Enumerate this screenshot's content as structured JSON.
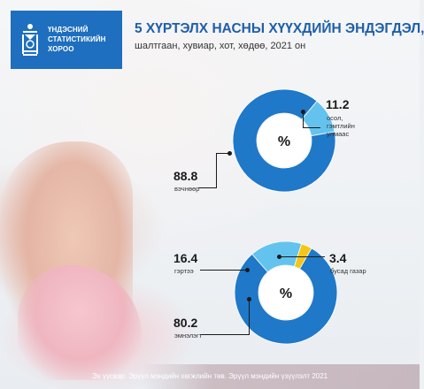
{
  "org": {
    "name": "ҮНДЭСНИЙ\nСТАТИСТИКИЙН\nХОРОО",
    "logo_icon": "soyombo-logo-icon"
  },
  "title": "5 ХҮРТЭЛХ НАСНЫ ХҮҮХДИЙН ЭНДЭГДЭЛ,",
  "subtitle": "шалтгаан, хувиар, хот, хөдөө, 2021 он",
  "source": "Эх үүсвэр: Эрүүл мэндийн хөгжлийн төв. Эрүүл мэндийн үзүүлэлт 2021",
  "colors": {
    "main_blue": "#1f78c8",
    "light_blue": "#64c3ee",
    "yellow": "#f5c518"
  },
  "chart_data": [
    {
      "type": "pie",
      "center_label": "%",
      "slices": [
        {
          "label": "вэчнөөр",
          "value": 88.8,
          "value_text": "88.8",
          "color": "#1f78c8"
        },
        {
          "label": "осол,\nгэмтлийн\nулмаас",
          "value": 11.2,
          "value_text": "11.2",
          "color": "#64c3ee"
        }
      ]
    },
    {
      "type": "pie",
      "center_label": "%",
      "slices": [
        {
          "label": "эмнэлэгт",
          "value": 80.2,
          "value_text": "80.2",
          "color": "#1f78c8"
        },
        {
          "label": "гэртээ",
          "value": 16.4,
          "value_text": "16.4",
          "color": "#64c3ee"
        },
        {
          "label": "бусад газар",
          "value": 3.4,
          "value_text": "3.4",
          "color": "#f5c518"
        }
      ]
    }
  ]
}
